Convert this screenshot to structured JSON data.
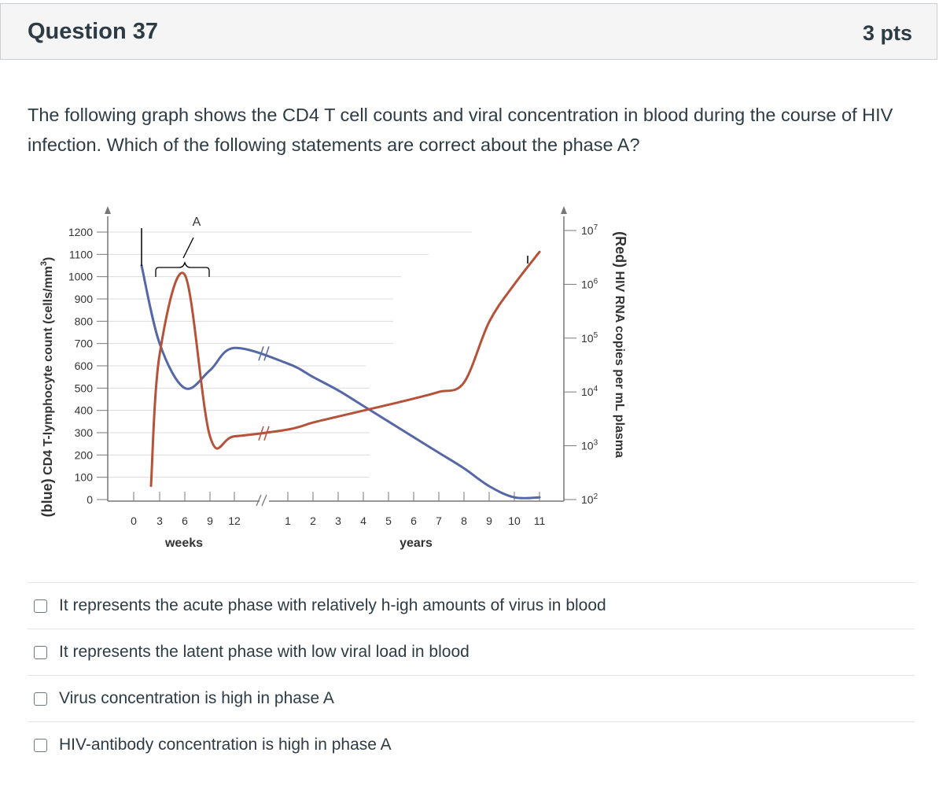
{
  "question": {
    "title": "Question 37",
    "points": "3 pts",
    "text": "The following graph shows the CD4 T cell counts and viral concentration in blood during the course of HIV infection. Which of the following statements are correct about the phase A?"
  },
  "chart_data": {
    "type": "line",
    "annotation": "A",
    "y_left": {
      "label_prefix": "(blue)",
      "label_rest": "CD4 T-lymphocyte count (cells/mm",
      "label_sup": "3",
      "label_end": ")",
      "ticks": [
        "0",
        "100",
        "200",
        "300",
        "400",
        "500",
        "600",
        "700",
        "800",
        "900",
        "1000",
        "1100",
        "1200"
      ],
      "range": [
        0,
        1200
      ]
    },
    "y_right": {
      "label_prefix": "(Red)",
      "label_rest": "HIV RNA copies per mL plasma",
      "ticks": [
        {
          "base": "10",
          "exp": "2"
        },
        {
          "base": "10",
          "exp": "3"
        },
        {
          "base": "10",
          "exp": "4"
        },
        {
          "base": "10",
          "exp": "5"
        },
        {
          "base": "10",
          "exp": "6"
        },
        {
          "base": "10",
          "exp": "7"
        }
      ],
      "scale": "log",
      "range": [
        100,
        10000000
      ]
    },
    "x_weeks": {
      "label": "weeks",
      "ticks": [
        "0",
        "3",
        "6",
        "9",
        "12"
      ]
    },
    "x_years": {
      "label": "years",
      "ticks": [
        "1",
        "2",
        "3",
        "4",
        "5",
        "6",
        "7",
        "8",
        "9",
        "10",
        "11"
      ]
    },
    "series": [
      {
        "name": "CD4 T-lymphocyte count",
        "color": "#5567a6",
        "axis": "left",
        "points": [
          {
            "x": "0 weeks",
            "y": 1050
          },
          {
            "x": "3 weeks",
            "y": 700
          },
          {
            "x": "6 weeks",
            "y": 500
          },
          {
            "x": "9 weeks",
            "y": 580
          },
          {
            "x": "12 weeks",
            "y": 680
          },
          {
            "x": "1 year",
            "y": 610
          },
          {
            "x": "2 years",
            "y": 550
          },
          {
            "x": "3 years",
            "y": 490
          },
          {
            "x": "4 years",
            "y": 420
          },
          {
            "x": "5 years",
            "y": 350
          },
          {
            "x": "6 years",
            "y": 280
          },
          {
            "x": "7 years",
            "y": 210
          },
          {
            "x": "8 years",
            "y": 140
          },
          {
            "x": "9 years",
            "y": 60
          },
          {
            "x": "10 years",
            "y": 10
          },
          {
            "x": "11 years",
            "y": 10
          }
        ]
      },
      {
        "name": "HIV RNA copies per mL plasma",
        "color": "#b5523a",
        "axis": "right",
        "points": [
          {
            "x": "0 weeks",
            "y": 180
          },
          {
            "x": "3 weeks",
            "y": 50000
          },
          {
            "x": "6 weeks",
            "y": 1500000
          },
          {
            "x": "9 weeks",
            "y": 1500
          },
          {
            "x": "12 weeks",
            "y": 1500
          },
          {
            "x": "1 year",
            "y": 2000
          },
          {
            "x": "2 years",
            "y": 2700
          },
          {
            "x": "3 years",
            "y": 3500
          },
          {
            "x": "4 years",
            "y": 4500
          },
          {
            "x": "5 years",
            "y": 5800
          },
          {
            "x": "6 years",
            "y": 7500
          },
          {
            "x": "7 years",
            "y": 10000
          },
          {
            "x": "8 years",
            "y": 15000
          },
          {
            "x": "9 years",
            "y": 200000
          },
          {
            "x": "10 years",
            "y": 1000000
          },
          {
            "x": "11 years",
            "y": 4000000
          }
        ]
      }
    ]
  },
  "answers": [
    {
      "label": "It represents the acute phase with relatively h-igh amounts of virus in blood"
    },
    {
      "label": "It represents the latent phase with low viral load in blood"
    },
    {
      "label": "Virus concentration is high in phase A"
    },
    {
      "label": "HIV-antibody concentration is high in phase A"
    }
  ]
}
